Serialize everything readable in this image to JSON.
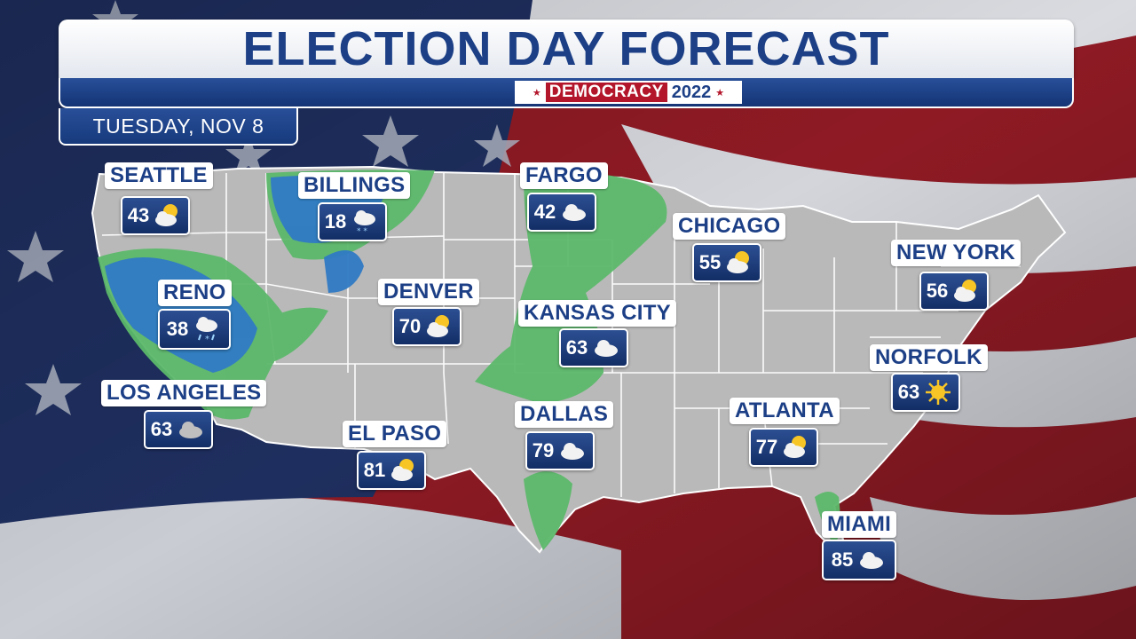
{
  "header": {
    "title": "ELECTION DAY FORECAST",
    "badge_word": "DEMOCRACY",
    "badge_year": "2022",
    "date": "TUESDAY, NOV 8"
  },
  "colors": {
    "title_blue": "#1c3f86",
    "badge_red": "#b3162b",
    "map_land": "#b9b9b9",
    "rain_green": "#5cb86a",
    "snow_blue": "#2f7ac5"
  },
  "cities": [
    {
      "name": "SEATTLE",
      "temp": "43",
      "icon": "partly-cloudy-icon"
    },
    {
      "name": "BILLINGS",
      "temp": "18",
      "icon": "snow-icon"
    },
    {
      "name": "FARGO",
      "temp": "42",
      "icon": "cloudy-icon"
    },
    {
      "name": "CHICAGO",
      "temp": "55",
      "icon": "partly-cloudy-icon"
    },
    {
      "name": "NEW YORK",
      "temp": "56",
      "icon": "partly-cloudy-icon"
    },
    {
      "name": "RENO",
      "temp": "38",
      "icon": "rain-snow-icon"
    },
    {
      "name": "DENVER",
      "temp": "70",
      "icon": "partly-cloudy-icon"
    },
    {
      "name": "KANSAS CITY",
      "temp": "63",
      "icon": "cloudy-icon"
    },
    {
      "name": "NORFOLK",
      "temp": "63",
      "icon": "sunny-icon"
    },
    {
      "name": "LOS ANGELES",
      "temp": "63",
      "icon": "cloudy-icon"
    },
    {
      "name": "DALLAS",
      "temp": "79",
      "icon": "cloudy-icon"
    },
    {
      "name": "ATLANTA",
      "temp": "77",
      "icon": "partly-cloudy-icon"
    },
    {
      "name": "EL PASO",
      "temp": "81",
      "icon": "partly-cloudy-icon"
    },
    {
      "name": "MIAMI",
      "temp": "85",
      "icon": "cloudy-icon"
    }
  ]
}
